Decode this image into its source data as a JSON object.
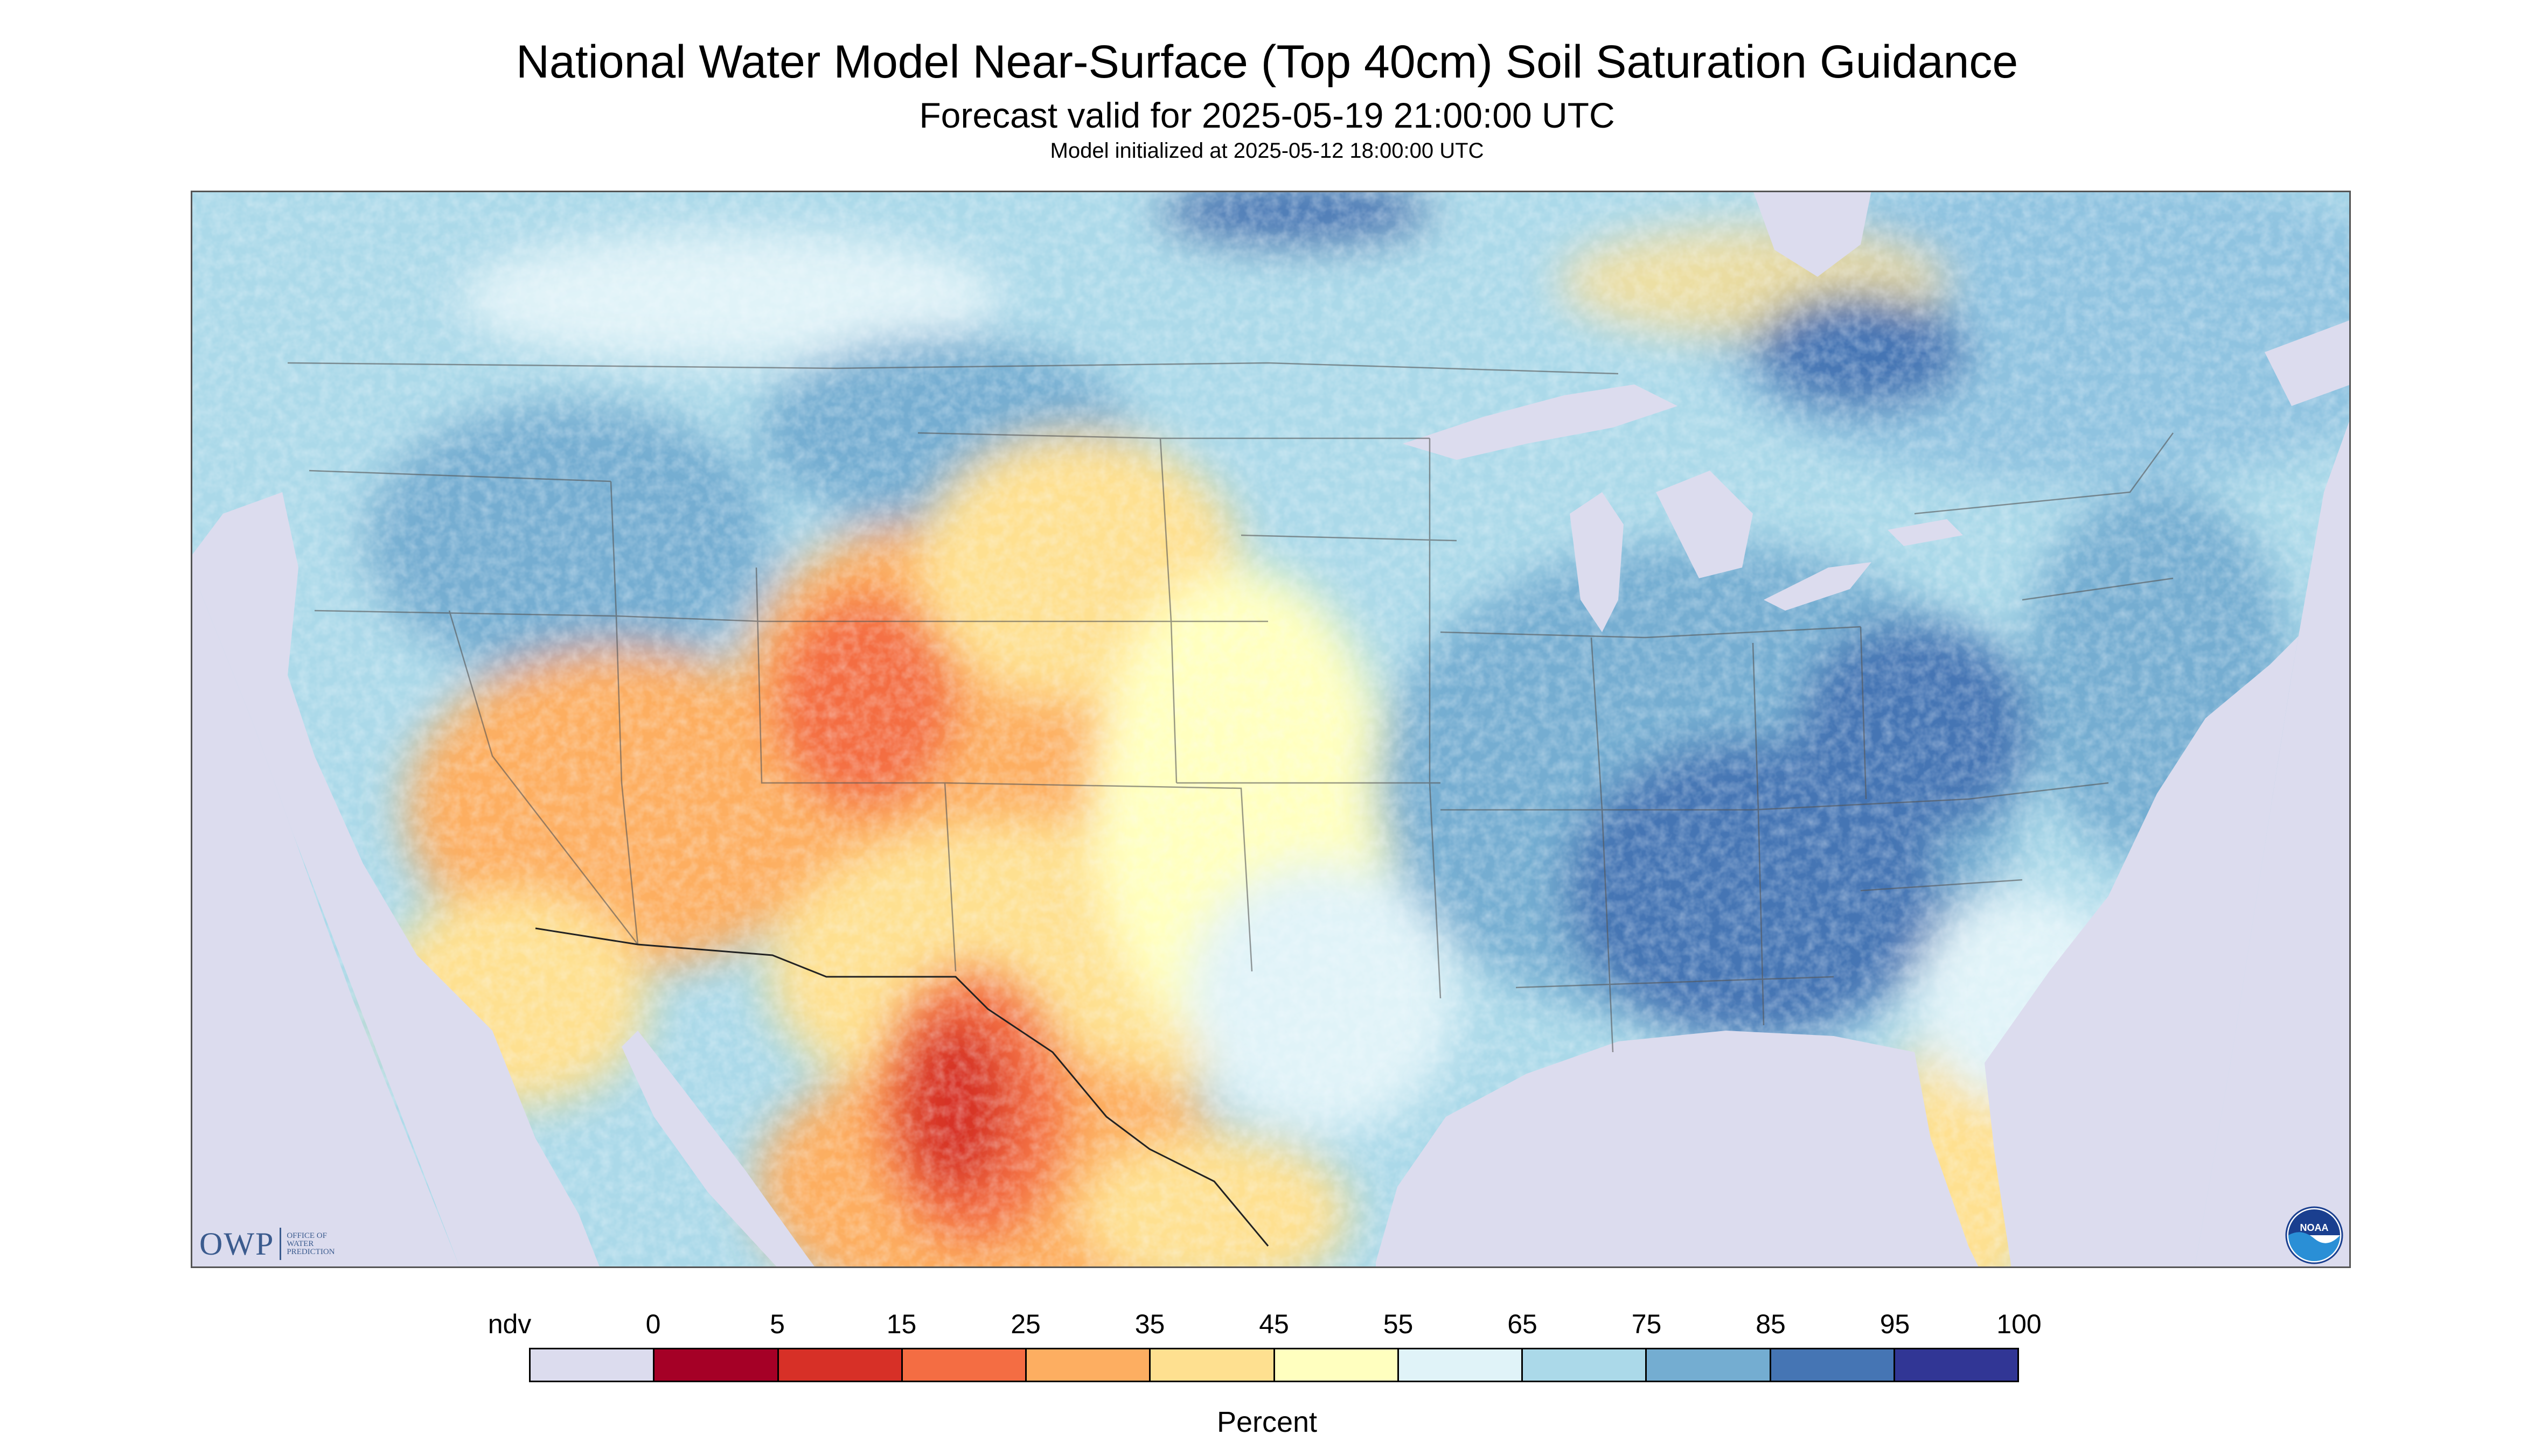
{
  "header": {
    "title": "National Water Model Near-Surface (Top 40cm) Soil Saturation Guidance",
    "subtitle": "Forecast valid for 2025-05-19 21:00:00 UTC",
    "init_line": "Model initialized at 2025-05-12 18:00:00 UTC"
  },
  "map": {
    "region": "CONUS",
    "projection_background_color": "#dcdcee",
    "water_color": "#dcdcee",
    "dominant_regions": [
      {
        "area": "southwest / northern mexico",
        "color": "#f6a05e"
      },
      {
        "area": "sierra madre occidental",
        "color": "#d73027"
      },
      {
        "area": "great plains / texas",
        "color": "#fee090"
      },
      {
        "area": "midwest / southeast",
        "color": "#74a9cf"
      },
      {
        "area": "northeast / canada",
        "color": "#abd9e9"
      }
    ]
  },
  "logos": {
    "owp_text": "OWP",
    "owp_subtext": [
      "OFFICE OF",
      "WATER",
      "PREDICTION"
    ],
    "noaa_text": "NOAA"
  },
  "legend": {
    "tick_labels": [
      "ndv",
      "0",
      "5",
      "15",
      "25",
      "35",
      "45",
      "55",
      "65",
      "75",
      "85",
      "95",
      "100"
    ],
    "colors": [
      "#dcdcee",
      "#a50026",
      "#d73027",
      "#f46d43",
      "#fdae61",
      "#fee090",
      "#ffffbf",
      "#e0f3f8",
      "#abd9e9",
      "#74add1",
      "#4575b4",
      "#313695"
    ],
    "units_label": "Percent"
  }
}
